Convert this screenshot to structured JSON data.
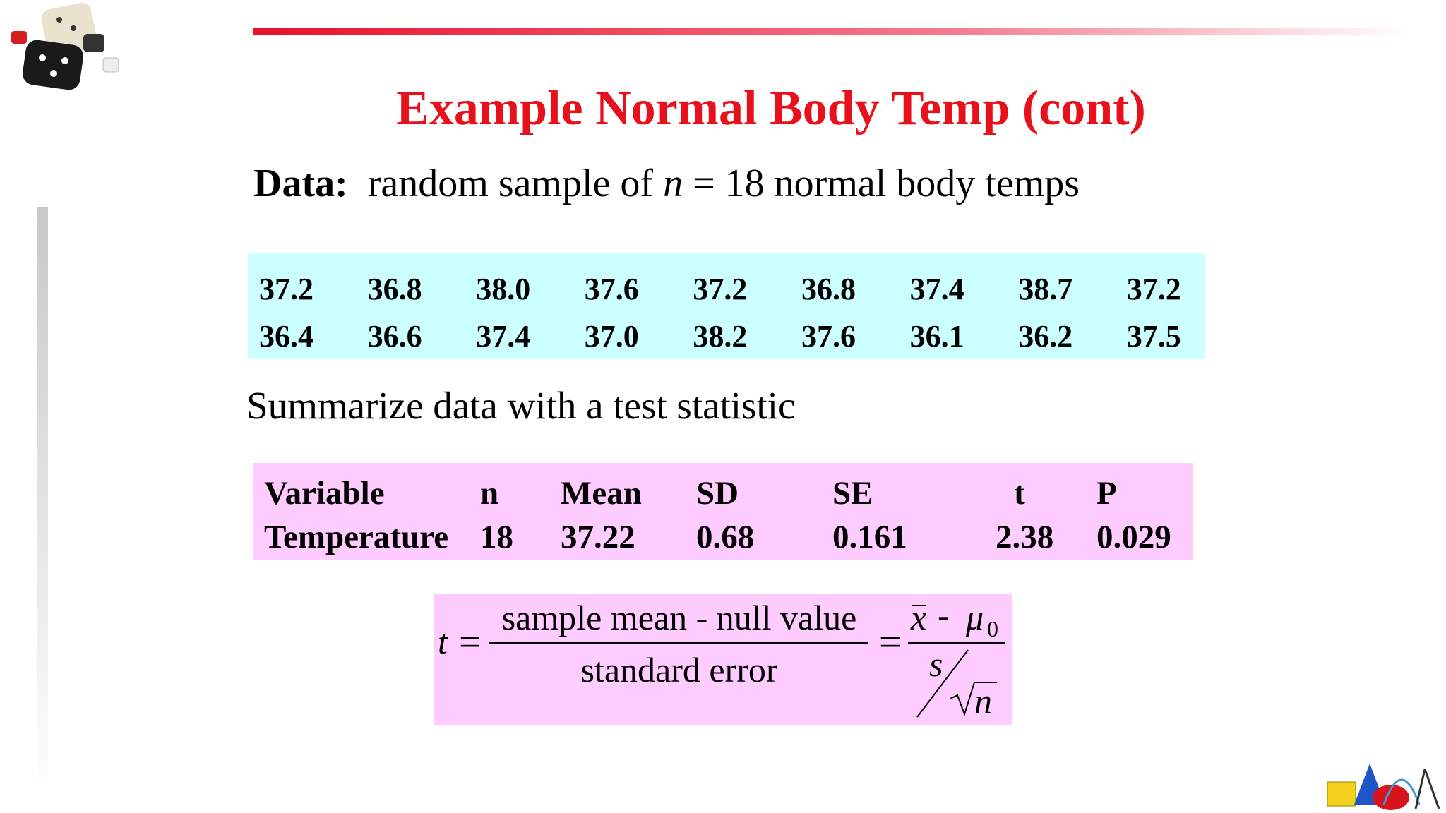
{
  "header": {
    "title": "Example Normal Body Temp (cont)"
  },
  "intro": {
    "label": "Data:",
    "text": "random sample of",
    "variable": "n",
    "rest": "= 18 normal body temps"
  },
  "data_table": {
    "rows": [
      [
        "37.2",
        "36.8",
        "38.0",
        "37.6",
        "37.2",
        "36.8",
        "37.4",
        "38.7",
        "37.2"
      ],
      [
        "36.4",
        "36.6",
        "37.4",
        "37.0",
        "38.2",
        "37.6",
        "36.1",
        "36.2",
        "37.5"
      ]
    ]
  },
  "summary": "Summarize data with a test statistic",
  "stats_table": {
    "header": [
      "Variable",
      "n",
      "Mean",
      "SD",
      "SE",
      "t",
      "P"
    ],
    "rows": [
      [
        "Temperature",
        "18",
        "37.22",
        "0.68",
        "0.161",
        "2.38",
        "0.029"
      ]
    ]
  },
  "formula": {
    "lhs": "t",
    "equals": "=",
    "numerator": "sample mean - null value",
    "denominator": "standard error",
    "mean": "x",
    "minus": "-",
    "mu": "μ",
    "mu_sub": "0",
    "sd": "s",
    "size": "n"
  }
}
